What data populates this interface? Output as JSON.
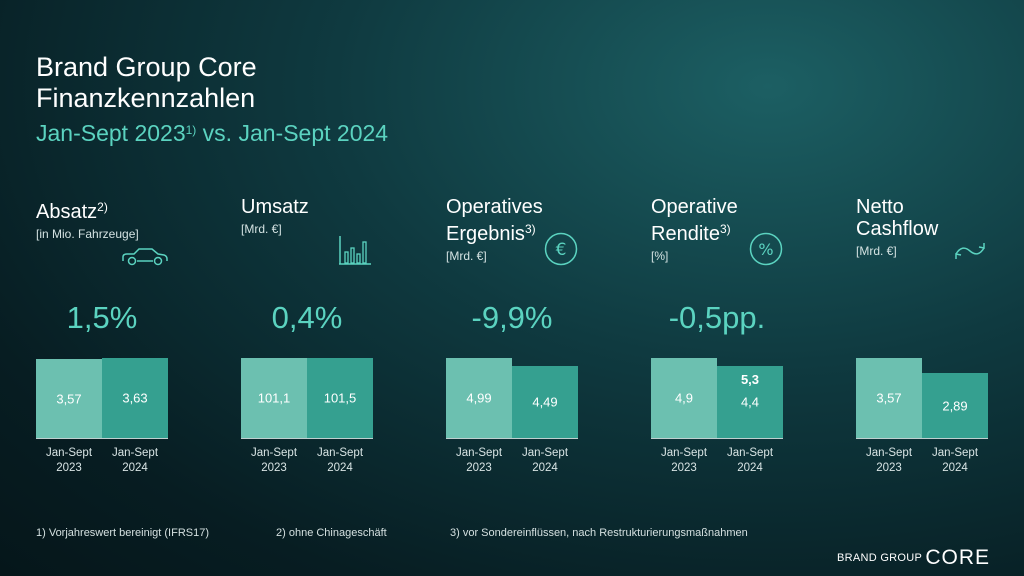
{
  "header": {
    "title_line1": "Brand Group Core",
    "title_line2": "Finanzkennzahlen",
    "subtitle_left": "Jan-Sept 2023",
    "subtitle_sup": "1)",
    "subtitle_right": " vs. Jan-Sept 2024"
  },
  "colors": {
    "accent": "#5bd3c0",
    "bar_2023": "#6cc0b0",
    "bar_2024": "#35a090"
  },
  "x_labels": {
    "y2023_line1": "Jan-Sept",
    "y2023_line2": "2023",
    "y2024_line1": "Jan-Sept",
    "y2024_line2": "2024"
  },
  "panels": [
    {
      "label_line1": "Absatz",
      "label_line2": "",
      "sup": "2)",
      "unit": "[in Mio. Fahrzeuge]",
      "icon": "car-icon",
      "pct": "1,5%"
    },
    {
      "label_line1": "Umsatz",
      "label_line2": "",
      "sup": "",
      "unit": "[Mrd. €]",
      "icon": "bar-chart-icon",
      "pct": "0,4%"
    },
    {
      "label_line1": "Operatives",
      "label_line2": "Ergebnis",
      "sup": "3)",
      "unit": "[Mrd. €]",
      "icon": "euro-icon",
      "pct": "-9,9%"
    },
    {
      "label_line1": "Operative",
      "label_line2": "Rendite",
      "sup": "3)",
      "unit": "[%]",
      "icon": "percent-icon",
      "pct": "-0,5pp."
    },
    {
      "label_line1": "Netto",
      "label_line2": "Cashflow",
      "sup": "",
      "unit": "[Mrd. €]",
      "icon": "cashflow-arrows-icon",
      "pct": ""
    }
  ],
  "chart_data": [
    {
      "type": "bar",
      "categories": [
        "Jan-Sept 2023",
        "Jan-Sept 2024"
      ],
      "values": [
        3.57,
        3.63
      ],
      "labels": [
        "3,57",
        "3,63"
      ],
      "extra_label": ""
    },
    {
      "type": "bar",
      "categories": [
        "Jan-Sept 2023",
        "Jan-Sept 2024"
      ],
      "values": [
        101.1,
        101.5
      ],
      "labels": [
        "101,1",
        "101,5"
      ],
      "extra_label": ""
    },
    {
      "type": "bar",
      "categories": [
        "Jan-Sept 2023",
        "Jan-Sept 2024"
      ],
      "values": [
        4.99,
        4.49
      ],
      "labels": [
        "4,99",
        "4,49"
      ],
      "extra_label": ""
    },
    {
      "type": "bar",
      "categories": [
        "Jan-Sept 2023",
        "Jan-Sept 2024"
      ],
      "values": [
        4.9,
        4.4
      ],
      "labels": [
        "4,9",
        "4,4"
      ],
      "extra_label": "5,3"
    },
    {
      "type": "bar",
      "categories": [
        "Jan-Sept 2023",
        "Jan-Sept 2024"
      ],
      "values": [
        3.57,
        2.89
      ],
      "labels": [
        "3,57",
        "2,89"
      ],
      "extra_label": ""
    }
  ],
  "footnotes": {
    "f1": "1) Vorjahreswert bereinigt (IFRS17)",
    "f2": "2) ohne Chinageschäft",
    "f3": "3) vor Sondereinflüssen, nach Restrukturierungsmaßnahmen"
  },
  "brand": {
    "left": "BRAND GROUP",
    "right": "CORE"
  }
}
